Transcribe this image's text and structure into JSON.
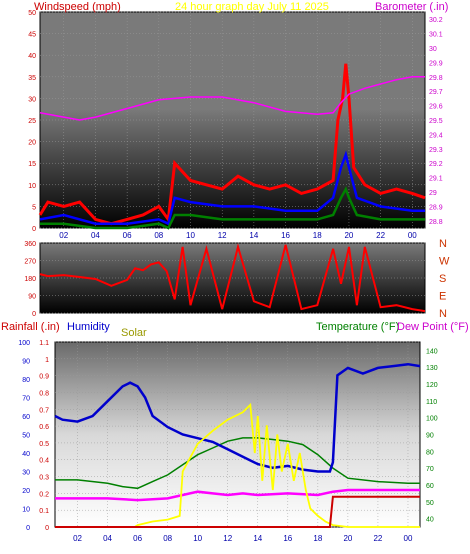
{
  "colors": {
    "wind_gust": "#ff0000",
    "wind_avg": "#0000ff",
    "wind_low": "#008000",
    "barometer": "#ff00ff",
    "direction": "#ff0000",
    "rainfall": "#cc0000",
    "humidity": "#0000cc",
    "solar": "#ffff00",
    "temperature": "#008000",
    "dew_point": "#ff00ff",
    "title": "#ffff00",
    "left_axis_red": "#cc0000",
    "right_axis_magenta": "#cc00cc",
    "right_axis_green": "#008000",
    "left_axis_blue": "#0000cc"
  },
  "chart_data": [
    {
      "type": "line",
      "title": "24 hour graph day   July 11 2025",
      "left_label": "Windspeed (mph)",
      "right_label": "Barometer (.in)",
      "x_ticks": [
        "02",
        "04",
        "06",
        "08",
        "10",
        "12",
        "14",
        "16",
        "18",
        "20",
        "22",
        "00"
      ],
      "y_left_ticks": [
        "50",
        "45",
        "40",
        "35",
        "30",
        "25",
        "20",
        "15",
        "10",
        "5",
        "0"
      ],
      "y_right_ticks": [
        "30.2",
        "30.1",
        "30",
        "29.9",
        "29.8",
        "29.7",
        "29.6",
        "29.5",
        "29.4",
        "29.3",
        "29.2",
        "29.1",
        "29",
        "28.9",
        "28.8"
      ],
      "ylim_left": [
        0,
        50
      ],
      "ylim_right": [
        28.75,
        30.25
      ],
      "x_range_hours": [
        0.5,
        24.8
      ],
      "series": [
        {
          "key": "barometer",
          "axis": "right",
          "x": [
            0.5,
            2,
            3,
            4,
            6,
            8,
            10,
            12,
            14,
            16,
            18,
            19,
            19.5,
            20,
            21,
            22,
            23,
            24,
            24.8
          ],
          "y": [
            29.55,
            29.52,
            29.5,
            29.52,
            29.58,
            29.64,
            29.66,
            29.66,
            29.62,
            29.56,
            29.54,
            29.55,
            29.62,
            29.68,
            29.72,
            29.75,
            29.78,
            29.8,
            29.8
          ]
        },
        {
          "key": "wind_gust",
          "axis": "left",
          "x": [
            0.5,
            1,
            2,
            3,
            4,
            5,
            6,
            7,
            8,
            8.6,
            9,
            10,
            11,
            12,
            13,
            14,
            15,
            16,
            17,
            18,
            19,
            19.3,
            19.6,
            19.8,
            20,
            20.3,
            21,
            22,
            23,
            24,
            24.8
          ],
          "y": [
            3,
            6,
            5,
            6,
            2,
            1,
            2,
            3,
            5,
            2,
            15,
            11,
            10,
            9,
            12,
            10,
            9,
            10,
            8,
            9,
            11,
            25,
            30,
            38,
            30,
            14,
            10,
            8,
            9,
            8,
            7
          ]
        },
        {
          "key": "wind_avg",
          "axis": "left",
          "x": [
            0.5,
            2,
            4,
            6,
            8,
            8.6,
            9,
            10,
            12,
            14,
            16,
            18,
            19,
            19.5,
            19.8,
            20,
            20.5,
            22,
            24,
            24.8
          ],
          "y": [
            2,
            3,
            1,
            1,
            2,
            1,
            7,
            6,
            5,
            5,
            4,
            4,
            7,
            14,
            17,
            14,
            7,
            5,
            4,
            4
          ]
        },
        {
          "key": "wind_low",
          "axis": "left",
          "x": [
            0.5,
            2,
            4,
            6,
            8,
            8.6,
            9,
            10,
            12,
            14,
            16,
            18,
            19,
            19.5,
            19.8,
            20,
            20.5,
            22,
            24,
            24.8
          ],
          "y": [
            1,
            1,
            0,
            0,
            1,
            0,
            3,
            3,
            2,
            2,
            2,
            2,
            3,
            7,
            9,
            7,
            3,
            2,
            2,
            2
          ]
        }
      ]
    },
    {
      "type": "line",
      "title": "",
      "left_ticks": [
        "360",
        "270",
        "180",
        "90",
        "0"
      ],
      "right_ticks": [
        "N",
        "W",
        "S",
        "E",
        "N"
      ],
      "ylim_left": [
        0,
        360
      ],
      "x_range_hours": [
        0.5,
        24.8
      ],
      "series": [
        {
          "key": "direction",
          "x": [
            0.5,
            1,
            2,
            3,
            4,
            5,
            6,
            6.5,
            7,
            7.5,
            8,
            8.5,
            9,
            9.5,
            10,
            11,
            12,
            13,
            14,
            15,
            16,
            17,
            18,
            19,
            19.5,
            20,
            20.5,
            21,
            22,
            23,
            24,
            24.8
          ],
          "y": [
            200,
            190,
            195,
            185,
            175,
            140,
            170,
            230,
            220,
            250,
            260,
            215,
            70,
            340,
            40,
            330,
            20,
            340,
            60,
            30,
            350,
            20,
            40,
            330,
            150,
            340,
            40,
            340,
            30,
            40,
            20,
            10
          ]
        }
      ]
    },
    {
      "type": "line",
      "title": "",
      "labels": {
        "rainfall": "Rainfall (.in)",
        "humidity": "Humidity",
        "solar": "Solar",
        "temperature": "Temperature (°F)",
        "dew_point": "Dew Point (°F)"
      },
      "x_ticks": [
        "02",
        "04",
        "06",
        "08",
        "10",
        "12",
        "14",
        "16",
        "18",
        "20",
        "22",
        "00"
      ],
      "y_rain_ticks": [
        "1.1",
        "1",
        "0.9",
        "0.8",
        "0.7",
        "0.6",
        "0.5",
        "0.4",
        "0.3",
        "0.2",
        "0.1",
        "0"
      ],
      "y_humidity_ticks": [
        "100",
        "90",
        "80",
        "70",
        "60",
        "50",
        "40",
        "30",
        "20",
        "10",
        "0"
      ],
      "y_temp_ticks": [
        "140",
        "130",
        "120",
        "110",
        "100",
        "90",
        "80",
        "70",
        "60",
        "50",
        "40"
      ],
      "ylim_rain": [
        0,
        1.1
      ],
      "ylim_humidity": [
        0,
        100
      ],
      "ylim_temp": [
        35,
        145
      ],
      "x_range_hours": [
        0.5,
        24.8
      ],
      "series": [
        {
          "key": "humidity",
          "axis": "humidity",
          "x": [
            0.5,
            1,
            2,
            3,
            4,
            5,
            5.5,
            6,
            6.5,
            7,
            8,
            9,
            10,
            11,
            12,
            13,
            14,
            15,
            16,
            17,
            18,
            18.8,
            19,
            19.3,
            20,
            21,
            22,
            23,
            24,
            24.8
          ],
          "y": [
            60,
            58,
            57,
            60,
            68,
            76,
            78,
            76,
            70,
            60,
            54,
            50,
            48,
            46,
            42,
            38,
            34,
            32,
            33,
            31,
            30,
            30,
            35,
            82,
            86,
            83,
            86,
            87,
            88,
            87
          ]
        },
        {
          "key": "temperature",
          "axis": "temp",
          "x": [
            0.5,
            2,
            4,
            5,
            6,
            7,
            8,
            9,
            10,
            11,
            12,
            13,
            14,
            15,
            16,
            17,
            18,
            19,
            20,
            22,
            24,
            24.8
          ],
          "y": [
            63,
            63,
            61,
            59,
            58,
            62,
            66,
            72,
            78,
            82,
            86,
            88,
            88,
            87,
            86,
            84,
            78,
            70,
            64,
            62,
            61,
            61
          ]
        },
        {
          "key": "dew_point",
          "axis": "temp",
          "x": [
            0.5,
            2,
            4,
            6,
            8,
            9,
            10,
            11,
            12,
            13,
            14,
            16,
            18,
            19,
            20,
            22,
            24,
            24.8
          ],
          "y": [
            52,
            52,
            52,
            51,
            52,
            54,
            56,
            55,
            54,
            55,
            54,
            55,
            54,
            56,
            57,
            57,
            57,
            57
          ]
        },
        {
          "key": "solar",
          "axis": "humidity",
          "x": [
            0.5,
            5.8,
            6,
            7,
            8,
            8.8,
            9,
            10,
            11,
            12,
            13,
            13.5,
            13.8,
            14,
            14.3,
            14.6,
            15,
            15.3,
            15.6,
            16,
            16.4,
            16.8,
            17.2,
            17.5,
            18,
            18.5,
            19,
            20,
            24.8
          ],
          "y": [
            0,
            0,
            1,
            3,
            4,
            6,
            30,
            45,
            52,
            58,
            62,
            66,
            40,
            60,
            25,
            55,
            20,
            50,
            30,
            45,
            25,
            40,
            20,
            10,
            6,
            3,
            1,
            0,
            0
          ]
        },
        {
          "key": "rainfall",
          "axis": "rain",
          "x": [
            0.5,
            18.8,
            19,
            24.8
          ],
          "y": [
            0,
            0,
            0.18,
            0.18
          ]
        }
      ]
    }
  ]
}
